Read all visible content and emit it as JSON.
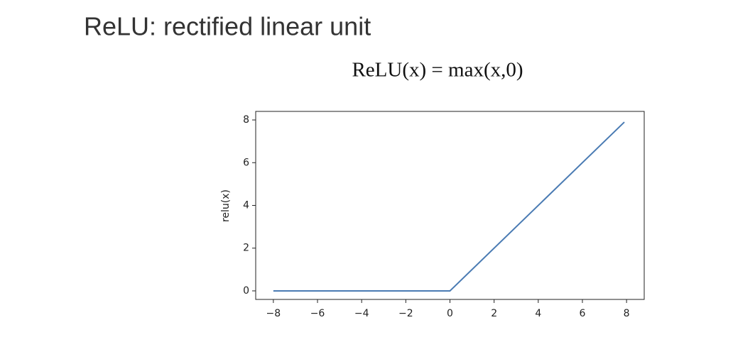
{
  "chart_data": {
    "type": "line",
    "title": "ReLU: rectified linear unit",
    "subtitle": "ReLU(x) = max(x,0)",
    "y_label": "relu(x)",
    "x": [
      -8,
      0,
      7.9
    ],
    "series": [
      {
        "color": "#4a7bb3",
        "values": [
          0,
          0,
          7.9
        ]
      }
    ],
    "xlim": [
      -8.8,
      8.8
    ],
    "ylim": [
      -0.4,
      8.4
    ],
    "xticks": [
      {
        "value": -8,
        "label": "−8"
      },
      {
        "value": -6,
        "label": "−6"
      },
      {
        "value": -4,
        "label": "−4"
      },
      {
        "value": -2,
        "label": "−2"
      },
      0,
      2,
      4,
      6,
      8
    ],
    "yticks": [
      0,
      2,
      4,
      6,
      8
    ],
    "grid": false
  }
}
